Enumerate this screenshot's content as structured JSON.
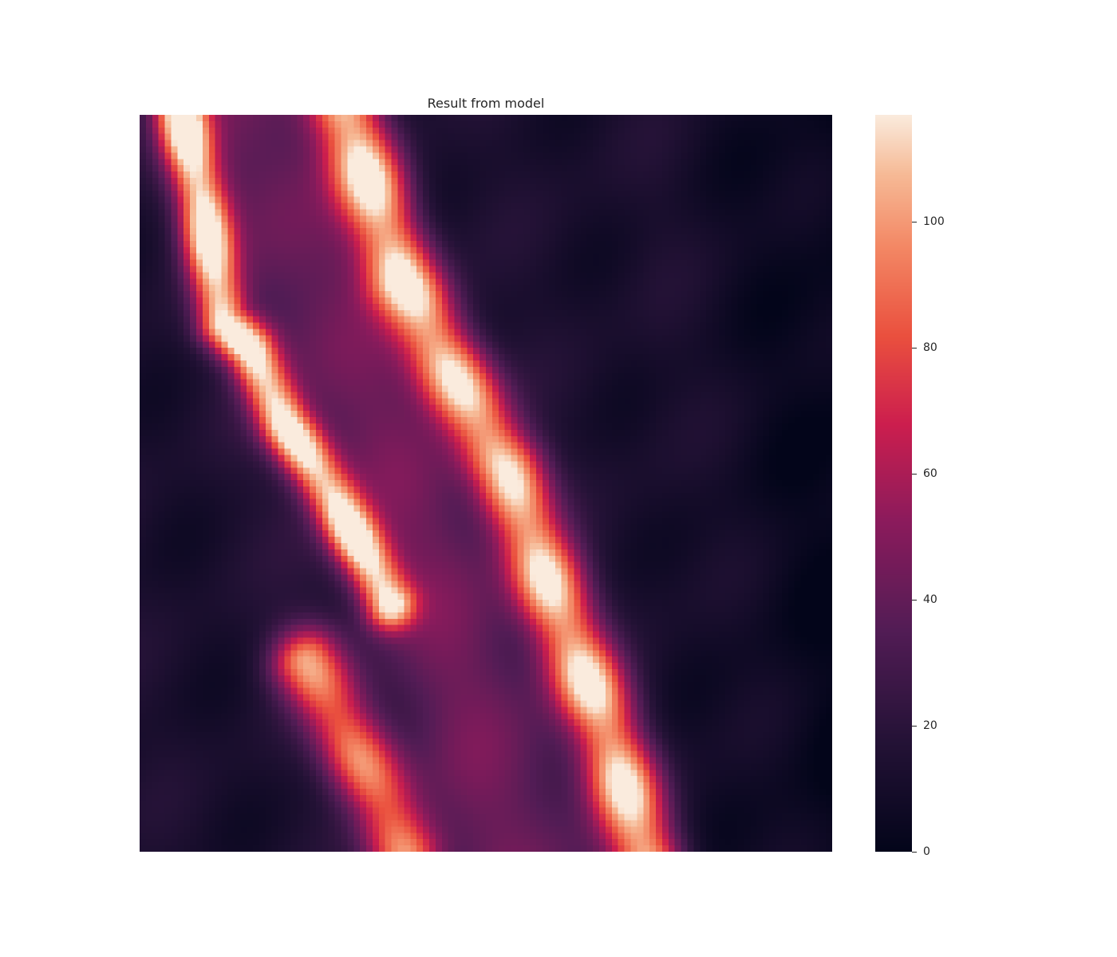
{
  "chart_data": {
    "type": "heatmap",
    "title": "Result from model",
    "colormap": "rocket",
    "grid": false,
    "x_ticks_visible": false,
    "y_ticks_visible": false,
    "value_range": [
      0,
      117
    ],
    "colorbar": {
      "location": "right",
      "ticks": [
        {
          "value": 0,
          "label": "0"
        },
        {
          "value": 20,
          "label": "20"
        },
        {
          "value": 40,
          "label": "40"
        },
        {
          "value": 60,
          "label": "60"
        },
        {
          "value": 80,
          "label": "80"
        },
        {
          "value": 100,
          "label": "100"
        }
      ]
    },
    "grid_shape": [
      117,
      110
    ],
    "background_level": 12,
    "features": [
      {
        "name": "upper-left ridge",
        "path": [
          [
            0.06,
            0.0
          ],
          [
            0.09,
            0.12
          ],
          [
            0.12,
            0.28
          ],
          [
            0.16,
            0.32
          ],
          [
            0.21,
            0.42
          ],
          [
            0.28,
            0.52
          ],
          [
            0.36,
            0.66
          ]
        ],
        "peak": 115,
        "width": 0.025
      },
      {
        "name": "main ridge",
        "path": [
          [
            0.3,
            0.0
          ],
          [
            0.38,
            0.22
          ],
          [
            0.47,
            0.38
          ],
          [
            0.53,
            0.48
          ],
          [
            0.6,
            0.66
          ],
          [
            0.67,
            0.82
          ],
          [
            0.73,
            1.0
          ]
        ],
        "peak": 112,
        "width": 0.035
      },
      {
        "name": "lower-left ridge",
        "path": [
          [
            0.24,
            0.74
          ],
          [
            0.3,
            0.84
          ],
          [
            0.35,
            0.93
          ],
          [
            0.38,
            1.0
          ]
        ],
        "peak": 90,
        "width": 0.035
      }
    ]
  }
}
